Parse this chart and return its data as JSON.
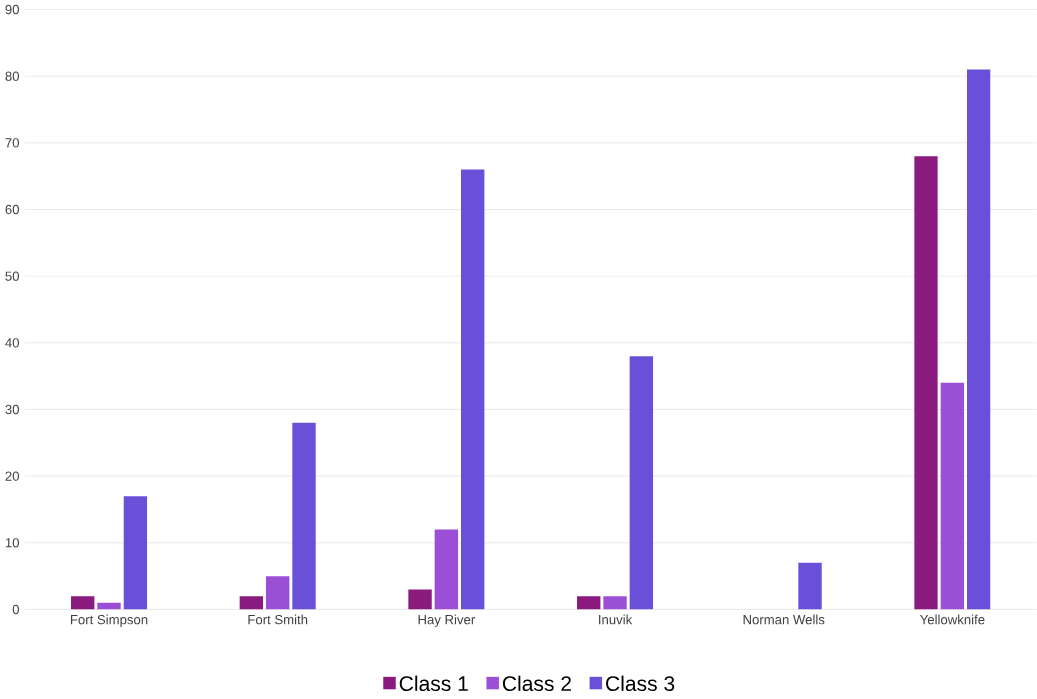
{
  "chart_data": {
    "type": "bar",
    "categories": [
      "Fort Simpson",
      "Fort Smith",
      "Hay River",
      "Inuvik",
      "Norman Wells",
      "Yellowknife"
    ],
    "series": [
      {
        "name": "Class 1",
        "color": "#8b1a7e",
        "values": [
          2,
          2,
          3,
          2,
          0,
          68
        ]
      },
      {
        "name": "Class 2",
        "color": "#9b4fd6",
        "values": [
          1,
          5,
          12,
          2,
          0,
          34
        ]
      },
      {
        "name": "Class 3",
        "color": "#6a4fd8",
        "values": [
          17,
          28,
          66,
          38,
          7,
          81
        ]
      }
    ],
    "ylim": [
      0,
      90
    ],
    "yticks": [
      0,
      10,
      20,
      30,
      40,
      50,
      60,
      70,
      80,
      90
    ],
    "grid": "y",
    "legend": "bottom"
  }
}
